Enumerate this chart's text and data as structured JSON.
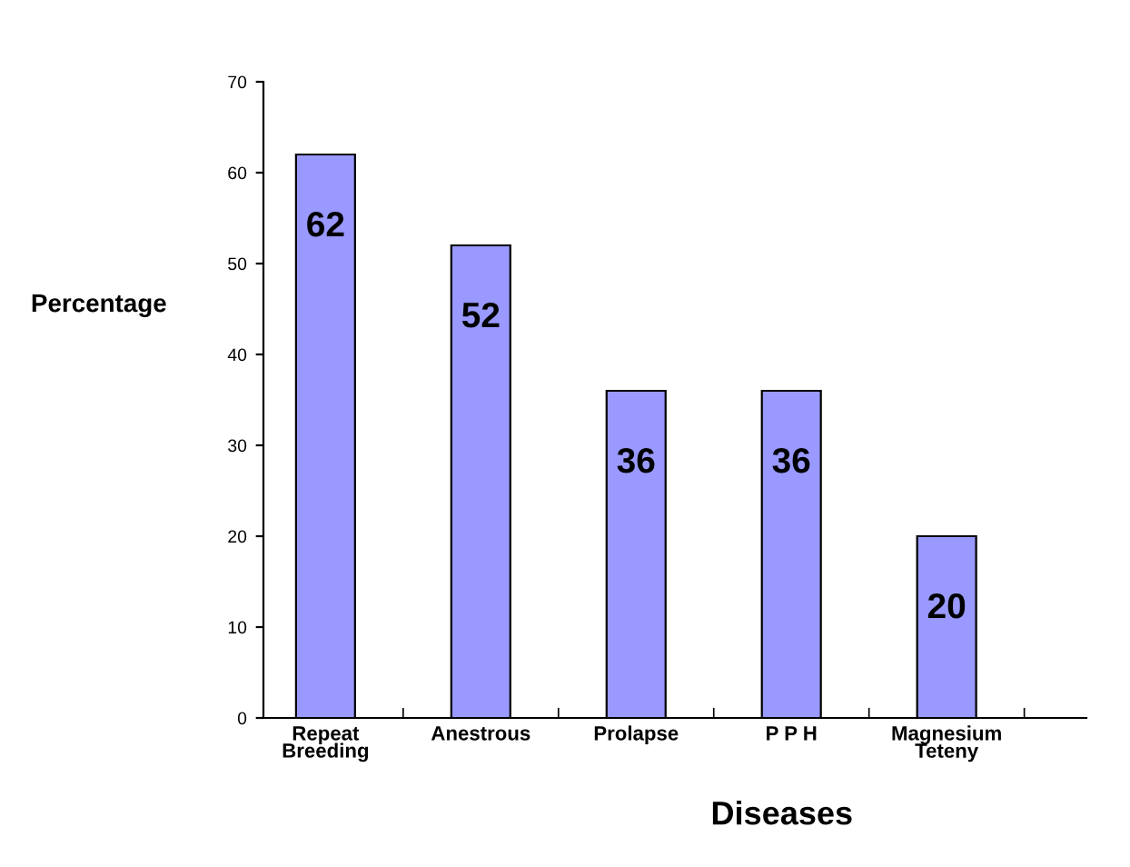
{
  "chart_data": {
    "type": "bar",
    "xlabel": "Diseases",
    "ylabel": "Percentage",
    "categories": [
      "Repeat\nBreeding",
      "Anestrous",
      "Prolapse",
      "P P H",
      "Magnesium\nTeteny"
    ],
    "values": [
      62,
      52,
      36,
      36,
      20
    ],
    "color": "#9999ff",
    "ylim": [
      0,
      70
    ],
    "yticks": [
      0,
      10,
      20,
      30,
      40,
      50,
      60,
      70
    ],
    "grid": false,
    "data_labels": true
  }
}
